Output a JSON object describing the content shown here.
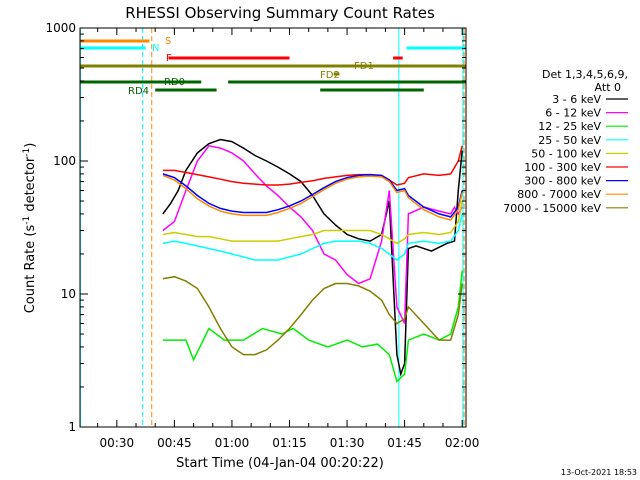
{
  "chart_data": {
    "type": "line",
    "title": "RHESSI Observing Summary Count Rates",
    "xlabel": "Start Time (04-Jan-04 00:20:22)",
    "ylabel": "Count Rate (s⁻¹ detector⁻¹)",
    "yscale": "log",
    "ylim": [
      1,
      1000
    ],
    "xlim_minutes": [
      20.4,
      121.0
    ],
    "x_ticks": [
      {
        "m": 30,
        "label": "00:30"
      },
      {
        "m": 45,
        "label": "00:45"
      },
      {
        "m": 60,
        "label": "01:00"
      },
      {
        "m": 75,
        "label": "01:15"
      },
      {
        "m": 90,
        "label": "01:30"
      },
      {
        "m": 105,
        "label": "01:45"
      },
      {
        "m": 120,
        "label": "02:00"
      }
    ],
    "y_ticks": [
      {
        "v": 1,
        "label": "1"
      },
      {
        "v": 10,
        "label": "10"
      },
      {
        "v": 100,
        "label": "100"
      },
      {
        "v": 1000,
        "label": "1000"
      }
    ],
    "legend": {
      "header": [
        "Det 1,3,4,5,6,9,",
        "Att 0"
      ],
      "placement": "right"
    },
    "series": [
      {
        "name": "3 - 6 keV",
        "color": "#000000",
        "points": [
          [
            42,
            40
          ],
          [
            44,
            48
          ],
          [
            46,
            60
          ],
          [
            48,
            85
          ],
          [
            51,
            115
          ],
          [
            54,
            135
          ],
          [
            57,
            145
          ],
          [
            60,
            140
          ],
          [
            63,
            125
          ],
          [
            66,
            110
          ],
          [
            69,
            100
          ],
          [
            72,
            90
          ],
          [
            75,
            80
          ],
          [
            78,
            70
          ],
          [
            81,
            55
          ],
          [
            84,
            40
          ],
          [
            87,
            33
          ],
          [
            90,
            28
          ],
          [
            93,
            26
          ],
          [
            96,
            25
          ],
          [
            99,
            28
          ],
          [
            101,
            50
          ],
          [
            103,
            3.5
          ],
          [
            104,
            2.5
          ],
          [
            105,
            3
          ],
          [
            106,
            22
          ],
          [
            108,
            23
          ],
          [
            112,
            21
          ],
          [
            116,
            24
          ],
          [
            118,
            25
          ],
          [
            119,
            60
          ],
          [
            120,
            120
          ]
        ]
      },
      {
        "name": "6 - 12 keV",
        "color": "#ff00ff",
        "points": [
          [
            42,
            30
          ],
          [
            45,
            35
          ],
          [
            48,
            60
          ],
          [
            51,
            100
          ],
          [
            54,
            130
          ],
          [
            57,
            125
          ],
          [
            60,
            115
          ],
          [
            63,
            100
          ],
          [
            66,
            80
          ],
          [
            69,
            65
          ],
          [
            72,
            55
          ],
          [
            75,
            45
          ],
          [
            78,
            38
          ],
          [
            81,
            30
          ],
          [
            84,
            20
          ],
          [
            87,
            18
          ],
          [
            90,
            14
          ],
          [
            93,
            12
          ],
          [
            96,
            13
          ],
          [
            99,
            25
          ],
          [
            101,
            60
          ],
          [
            103,
            8
          ],
          [
            105,
            6
          ],
          [
            106,
            40
          ],
          [
            110,
            45
          ],
          [
            114,
            42
          ],
          [
            117,
            40
          ],
          [
            118,
            45
          ],
          [
            119,
            40
          ],
          [
            120,
            45
          ]
        ]
      },
      {
        "name": "12 - 25 keV",
        "color": "#00ee00",
        "points": [
          [
            42,
            4.5
          ],
          [
            48,
            4.5
          ],
          [
            50,
            3.2
          ],
          [
            54,
            5.5
          ],
          [
            58,
            4.5
          ],
          [
            63,
            4.5
          ],
          [
            68,
            5.5
          ],
          [
            73,
            5
          ],
          [
            76,
            5.5
          ],
          [
            80,
            4.5
          ],
          [
            85,
            4
          ],
          [
            90,
            4.5
          ],
          [
            94,
            4
          ],
          [
            98,
            4.2
          ],
          [
            101,
            3.5
          ],
          [
            103,
            2.2
          ],
          [
            105,
            2.5
          ],
          [
            106,
            4.5
          ],
          [
            110,
            5
          ],
          [
            114,
            4.5
          ],
          [
            117,
            5
          ],
          [
            119,
            8
          ],
          [
            120,
            15
          ]
        ]
      },
      {
        "name": "25 - 50 keV",
        "color": "#00ffff",
        "points": [
          [
            42,
            24
          ],
          [
            45,
            25
          ],
          [
            48,
            24
          ],
          [
            51,
            23
          ],
          [
            54,
            22
          ],
          [
            57,
            21
          ],
          [
            60,
            20
          ],
          [
            63,
            19
          ],
          [
            66,
            18
          ],
          [
            69,
            18
          ],
          [
            72,
            18
          ],
          [
            75,
            19
          ],
          [
            78,
            20
          ],
          [
            81,
            22
          ],
          [
            84,
            24
          ],
          [
            87,
            25
          ],
          [
            90,
            25
          ],
          [
            93,
            25
          ],
          [
            96,
            24
          ],
          [
            99,
            22
          ],
          [
            101,
            20
          ],
          [
            103,
            18
          ],
          [
            105,
            20
          ],
          [
            106,
            24
          ],
          [
            110,
            25
          ],
          [
            114,
            24
          ],
          [
            117,
            25
          ],
          [
            119,
            30
          ],
          [
            120,
            40
          ]
        ]
      },
      {
        "name": "50 - 100 keV",
        "color": "#cccc00",
        "points": [
          [
            42,
            28
          ],
          [
            45,
            29
          ],
          [
            48,
            28
          ],
          [
            51,
            27
          ],
          [
            54,
            27
          ],
          [
            57,
            26
          ],
          [
            60,
            25
          ],
          [
            63,
            25
          ],
          [
            66,
            25
          ],
          [
            69,
            25
          ],
          [
            72,
            25
          ],
          [
            75,
            26
          ],
          [
            78,
            27
          ],
          [
            81,
            28
          ],
          [
            84,
            30
          ],
          [
            87,
            30
          ],
          [
            90,
            30
          ],
          [
            93,
            30
          ],
          [
            96,
            30
          ],
          [
            99,
            28
          ],
          [
            101,
            26
          ],
          [
            103,
            24
          ],
          [
            105,
            26
          ],
          [
            106,
            28
          ],
          [
            110,
            29
          ],
          [
            114,
            28
          ],
          [
            117,
            29
          ],
          [
            119,
            35
          ],
          [
            120,
            50
          ]
        ]
      },
      {
        "name": "100 - 300 keV",
        "color": "#ff0000",
        "points": [
          [
            42,
            85
          ],
          [
            45,
            85
          ],
          [
            48,
            82
          ],
          [
            51,
            79
          ],
          [
            54,
            76
          ],
          [
            57,
            73
          ],
          [
            60,
            70
          ],
          [
            63,
            68
          ],
          [
            66,
            67
          ],
          [
            69,
            66
          ],
          [
            72,
            66
          ],
          [
            75,
            67
          ],
          [
            78,
            69
          ],
          [
            81,
            71
          ],
          [
            84,
            74
          ],
          [
            87,
            76
          ],
          [
            90,
            78
          ],
          [
            93,
            79
          ],
          [
            96,
            79
          ],
          [
            99,
            77
          ],
          [
            101,
            72
          ],
          [
            103,
            66
          ],
          [
            105,
            68
          ],
          [
            106,
            75
          ],
          [
            110,
            80
          ],
          [
            114,
            78
          ],
          [
            117,
            80
          ],
          [
            119,
            100
          ],
          [
            120,
            130
          ]
        ]
      },
      {
        "name": "300 - 800 keV",
        "color": "#0000ff",
        "points": [
          [
            42,
            80
          ],
          [
            45,
            75
          ],
          [
            48,
            65
          ],
          [
            51,
            55
          ],
          [
            54,
            48
          ],
          [
            57,
            44
          ],
          [
            60,
            42
          ],
          [
            63,
            41
          ],
          [
            66,
            41
          ],
          [
            69,
            41
          ],
          [
            72,
            43
          ],
          [
            75,
            46
          ],
          [
            78,
            50
          ],
          [
            81,
            56
          ],
          [
            84,
            63
          ],
          [
            87,
            70
          ],
          [
            90,
            75
          ],
          [
            93,
            78
          ],
          [
            96,
            79
          ],
          [
            99,
            78
          ],
          [
            101,
            72
          ],
          [
            103,
            60
          ],
          [
            105,
            62
          ],
          [
            106,
            55
          ],
          [
            110,
            45
          ],
          [
            114,
            40
          ],
          [
            117,
            38
          ],
          [
            119,
            45
          ],
          [
            120,
            60
          ]
        ]
      },
      {
        "name": "800 - 7000 keV",
        "color": "#ff8800",
        "points": [
          [
            42,
            78
          ],
          [
            45,
            72
          ],
          [
            48,
            62
          ],
          [
            51,
            52
          ],
          [
            54,
            46
          ],
          [
            57,
            42
          ],
          [
            60,
            40
          ],
          [
            63,
            39
          ],
          [
            66,
            39
          ],
          [
            69,
            39
          ],
          [
            72,
            41
          ],
          [
            75,
            44
          ],
          [
            78,
            48
          ],
          [
            81,
            54
          ],
          [
            84,
            61
          ],
          [
            87,
            68
          ],
          [
            90,
            73
          ],
          [
            93,
            76
          ],
          [
            96,
            77
          ],
          [
            99,
            76
          ],
          [
            101,
            70
          ],
          [
            103,
            58
          ],
          [
            105,
            60
          ],
          [
            106,
            53
          ],
          [
            110,
            43
          ],
          [
            114,
            38
          ],
          [
            117,
            36
          ],
          [
            119,
            43
          ],
          [
            120,
            58
          ]
        ]
      },
      {
        "name": "7000 - 15000 keV",
        "color": "#808000",
        "points": [
          [
            42,
            13
          ],
          [
            45,
            13.5
          ],
          [
            48,
            12.5
          ],
          [
            51,
            11
          ],
          [
            54,
            8
          ],
          [
            57,
            5.5
          ],
          [
            60,
            4
          ],
          [
            63,
            3.5
          ],
          [
            66,
            3.5
          ],
          [
            69,
            3.8
          ],
          [
            72,
            4.5
          ],
          [
            75,
            5.5
          ],
          [
            78,
            7
          ],
          [
            81,
            9
          ],
          [
            84,
            11
          ],
          [
            87,
            12
          ],
          [
            90,
            12
          ],
          [
            93,
            11.5
          ],
          [
            96,
            10.5
          ],
          [
            99,
            9
          ],
          [
            101,
            7
          ],
          [
            103,
            6
          ],
          [
            105,
            6.5
          ],
          [
            106,
            8
          ],
          [
            110,
            6
          ],
          [
            114,
            4.5
          ],
          [
            117,
            4.5
          ],
          [
            119,
            7
          ],
          [
            120,
            12
          ]
        ]
      }
    ],
    "state_bars": [
      {
        "label": "S",
        "color": "#ff8800",
        "label_color": "#ff8800",
        "segments": [
          [
            20.4,
            38.5
          ]
        ]
      },
      {
        "label": "N",
        "color": "#00ffff",
        "label_color": "#00ffff",
        "segments": [
          [
            20.4,
            37.5
          ],
          [
            105.5,
            121.0
          ]
        ]
      },
      {
        "label": "F",
        "color": "#ff0000",
        "label_color": "#ff0000",
        "segments": [
          [
            43.5,
            75.0
          ],
          [
            102.0,
            104.5
          ]
        ]
      },
      {
        "label": "FD1",
        "color": "#808000",
        "label_color": "#808000",
        "segments": [
          [
            20.4,
            121.0
          ]
        ]
      },
      {
        "label": "FD2",
        "color": "#808000",
        "label_color": "#808000",
        "segments": [
          [
            86.5,
            88.0
          ]
        ]
      },
      {
        "label": "RD0",
        "color": "#006400",
        "label_color": "#006400",
        "segments": [
          [
            20.4,
            52.0
          ],
          [
            59.0,
            121.0
          ]
        ]
      },
      {
        "label": "RD4",
        "color": "#006400",
        "label_color": "#006400",
        "segments": [
          [
            40.0,
            56.0
          ],
          [
            83.0,
            110.0
          ]
        ]
      }
    ],
    "vlines": [
      {
        "m": 20.5,
        "color": "#00ffff",
        "dashed": false
      },
      {
        "m": 36.7,
        "color": "#00ffff",
        "dashed": true
      },
      {
        "m": 39.1,
        "color": "#ff8800",
        "dashed": true
      },
      {
        "m": 103.5,
        "color": "#00ffff",
        "dashed": false
      },
      {
        "m": 120.2,
        "color": "#00ffff",
        "dashed": false
      },
      {
        "m": 120.5,
        "color": "#ff8800",
        "dashed": true
      }
    ]
  },
  "footer": {
    "timestamp": "13-Oct-2021 18:53"
  }
}
